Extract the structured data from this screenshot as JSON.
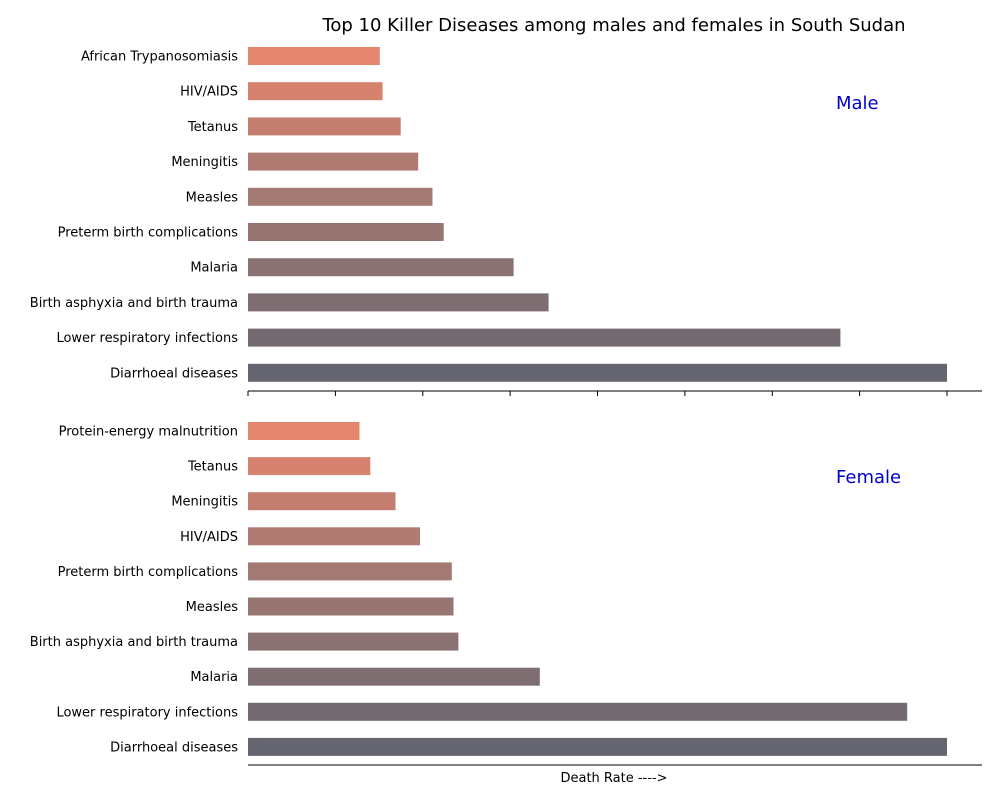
{
  "chart_data": {
    "type": "bar",
    "orientation": "horizontal",
    "title": "Top 10 Killer Diseases among males and females in South Sudan",
    "xlabel": "Death Rate ---->",
    "ylabel": "",
    "xlim": [
      0,
      2100
    ],
    "colors": [
      "#65656f",
      "#726a70",
      "#7f6e71",
      "#8b7272",
      "#977672",
      "#a37973",
      "#af7b73",
      "#c37e70",
      "#d5826f",
      "#e5866e",
      "#f28a6e"
    ],
    "accent_label_color": "#0000cc",
    "panels": [
      {
        "name": "male",
        "label": "Male",
        "categories": [
          "Diarrhoeal diseases",
          "Lower respiratory infections",
          "Birth asphyxia and birth trauma",
          "Malaria",
          "Preterm birth complications",
          "Measles",
          "Meningitis",
          "Tetanus",
          "HIV/AIDS",
          "African Trypanosomiasis"
        ],
        "values": [
          2000,
          1695,
          860,
          760,
          560,
          528,
          487,
          437,
          385,
          377
        ]
      },
      {
        "name": "female",
        "label": "Female",
        "categories": [
          "Diarrhoeal diseases",
          "Lower respiratory infections",
          "Malaria",
          "Birth asphyxia and birth trauma",
          "Measles",
          "Preterm birth complications",
          "HIV/AIDS",
          "Meningitis",
          "Tetanus",
          "Protein-energy malnutrition"
        ],
        "values": [
          2000,
          1886,
          835,
          602,
          588,
          583,
          492,
          422,
          350,
          319
        ]
      }
    ]
  }
}
